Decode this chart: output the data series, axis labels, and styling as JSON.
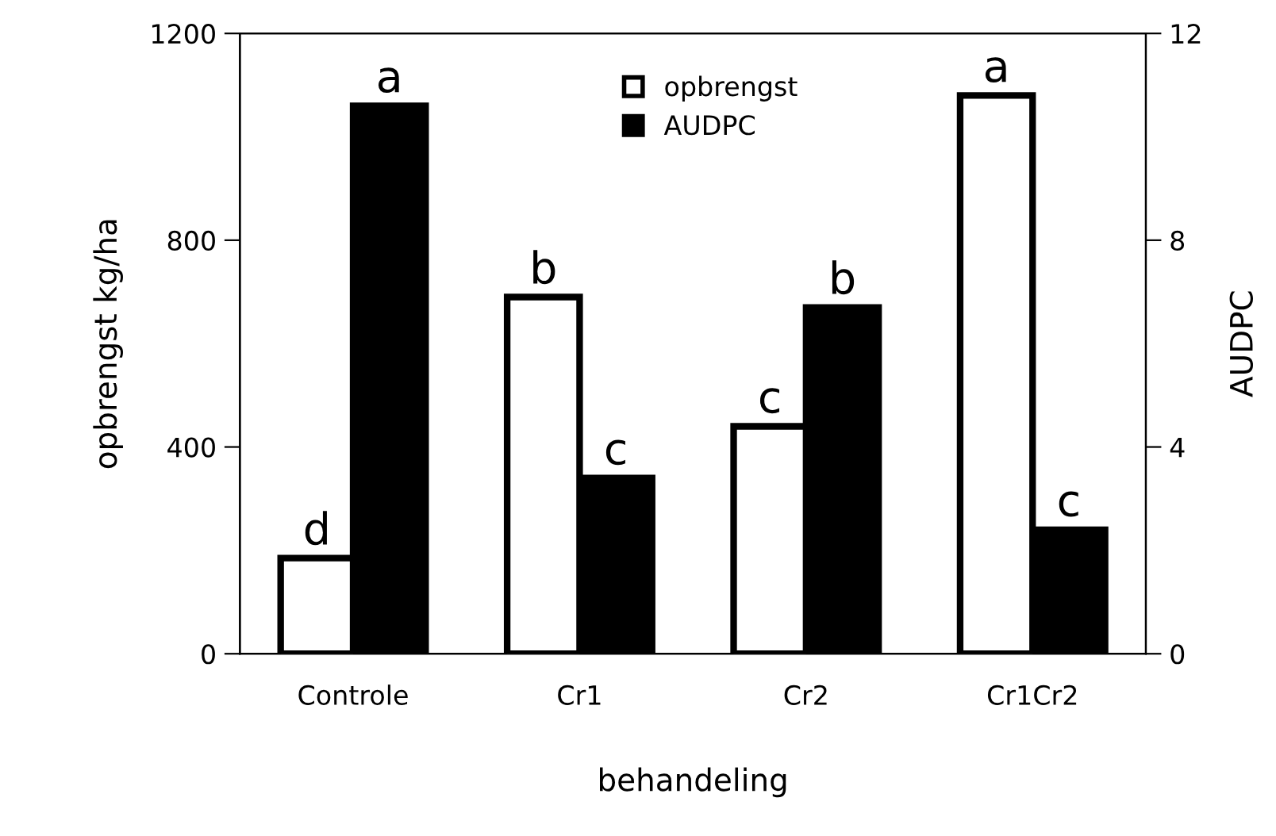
{
  "chart_data": {
    "type": "bar",
    "xlabel": "behandeling",
    "ylabel": "opbrengst kg/ha",
    "y2label": "AUDPC",
    "categories": [
      "Controle",
      "Cr1",
      "Cr2",
      "Cr1Cr2"
    ],
    "series": [
      {
        "name": "opbrengst",
        "color": "#ffffff",
        "values": [
          185,
          690,
          440,
          1080
        ],
        "value_labels": [
          "d",
          "b",
          "c",
          "a"
        ]
      },
      {
        "name": "AUDPC",
        "color": "#000000",
        "axis": "y2",
        "values": [
          10.6,
          3.4,
          6.7,
          2.4
        ],
        "value_labels": [
          "a",
          "c",
          "b",
          "c"
        ]
      }
    ],
    "ylim": [
      0,
      1200
    ],
    "yticks": [
      0,
      400,
      800,
      1200
    ],
    "y2lim": [
      0,
      12
    ],
    "y2ticks": [
      0,
      4,
      8,
      12
    ],
    "legend": "top",
    "grid": false
  }
}
